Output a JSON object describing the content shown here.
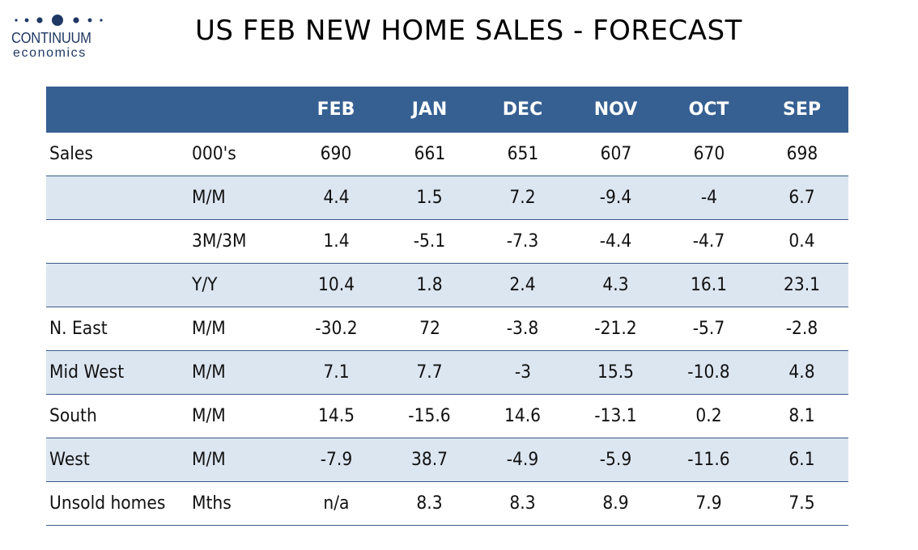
{
  "logo": {
    "brand_line1": "CONTINUUM",
    "brand_line2": "economics",
    "brand_color": "#1f3864"
  },
  "title": "US FEB NEW HOME SALES - FORECAST",
  "colors": {
    "header_bg": "#366092",
    "header_text": "#ffffff",
    "shaded_row": "#dce6f1",
    "row_border": "#3a5a8a"
  },
  "table": {
    "columns": [
      "",
      "",
      "FEB",
      "JAN",
      "DEC",
      "NOV",
      "OCT",
      "SEP"
    ],
    "rows": [
      {
        "label": "Sales",
        "unit": "000's",
        "values": [
          "690",
          "661",
          "651",
          "607",
          "670",
          "698"
        ]
      },
      {
        "label": "",
        "unit": "M/M",
        "values": [
          "4.4",
          "1.5",
          "7.2",
          "-9.4",
          "-4",
          "6.7"
        ]
      },
      {
        "label": "",
        "unit": "3M/3M",
        "values": [
          "1.4",
          "-5.1",
          "-7.3",
          "-4.4",
          "-4.7",
          "0.4"
        ]
      },
      {
        "label": "",
        "unit": "Y/Y",
        "values": [
          "10.4",
          "1.8",
          "2.4",
          "4.3",
          "16.1",
          "23.1"
        ]
      },
      {
        "label": "N. East",
        "unit": "M/M",
        "values": [
          "-30.2",
          "72",
          "-3.8",
          "-21.2",
          "-5.7",
          "-2.8"
        ]
      },
      {
        "label": "Mid West",
        "unit": "M/M",
        "values": [
          "7.1",
          "7.7",
          "-3",
          "15.5",
          "-10.8",
          "4.8"
        ]
      },
      {
        "label": "South",
        "unit": "M/M",
        "values": [
          "14.5",
          "-15.6",
          "14.6",
          "-13.1",
          "0.2",
          "8.1"
        ]
      },
      {
        "label": "West",
        "unit": "M/M",
        "values": [
          "-7.9",
          "38.7",
          "-4.9",
          "-5.9",
          "-11.6",
          "6.1"
        ]
      },
      {
        "label": "Unsold homes",
        "unit": "Mths",
        "values": [
          "n/a",
          "8.3",
          "8.3",
          "8.9",
          "7.9",
          "7.5"
        ]
      }
    ]
  }
}
